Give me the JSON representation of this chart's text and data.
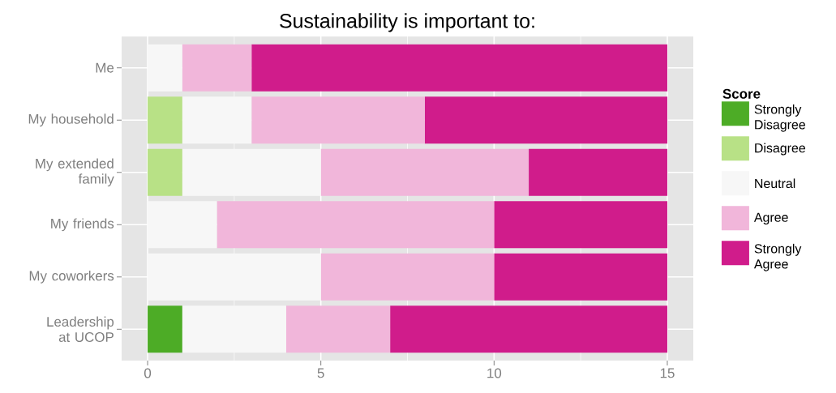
{
  "chart_data": {
    "type": "bar",
    "orientation": "horizontal",
    "stacked": true,
    "title": "Sustainability is important to:",
    "legend_title": "Score",
    "categories": [
      "Me",
      "My household",
      "My extended family",
      "My friends",
      "My coworkers",
      "Leadership at UCOP"
    ],
    "series": [
      {
        "name": "Strongly Disagree",
        "color": "#4dac26",
        "values": [
          0,
          0,
          0,
          0,
          0,
          1
        ]
      },
      {
        "name": "Disagree",
        "color": "#b8e186",
        "values": [
          0,
          1,
          1,
          0,
          0,
          0
        ]
      },
      {
        "name": "Neutral",
        "color": "#f7f7f7",
        "values": [
          1,
          2,
          4,
          2,
          5,
          3
        ]
      },
      {
        "name": "Agree",
        "color": "#f1b6da",
        "values": [
          2,
          5,
          6,
          8,
          5,
          3
        ]
      },
      {
        "name": "Strongly Agree",
        "color": "#d01c8b",
        "values": [
          12,
          7,
          4,
          5,
          5,
          8
        ]
      }
    ],
    "xlim": [
      -0.75,
      15.75
    ],
    "xticks": [
      0,
      5,
      10,
      15
    ],
    "grid": true,
    "legend": "right"
  }
}
